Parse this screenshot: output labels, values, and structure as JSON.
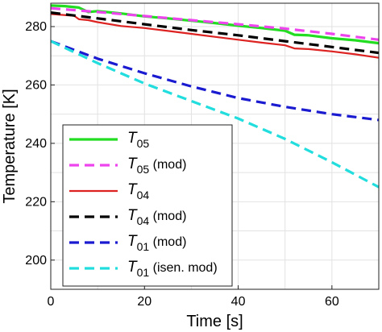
{
  "chart_data": {
    "type": "line",
    "title": "",
    "xlabel": "Time [s]",
    "ylabel": "Temperature [K]",
    "xlim": [
      0,
      70
    ],
    "ylim": [
      190,
      288
    ],
    "xticks": [
      0,
      20,
      40,
      60
    ],
    "yticks": [
      200,
      220,
      240,
      260,
      280
    ],
    "grid": true,
    "legend_position": "bottom-left",
    "series": [
      {
        "name_main": "T",
        "name_sub": "05",
        "name_suffix": "",
        "color": "#22dd22",
        "dash": "solid",
        "width": 3.2,
        "x": [
          0,
          3,
          6,
          8,
          10,
          15,
          20,
          25,
          30,
          35,
          40,
          45,
          50,
          52,
          55,
          60,
          65,
          70
        ],
        "y": [
          287.2,
          287.0,
          286.5,
          285.0,
          285.3,
          284.5,
          283.5,
          282.8,
          282.0,
          281.2,
          280.3,
          279.5,
          278.6,
          277.2,
          277.0,
          276.0,
          275.3,
          274.3
        ]
      },
      {
        "name_main": "T",
        "name_sub": "05",
        "name_suffix": " (mod)",
        "color": "#ee44ee",
        "dash": "dashed",
        "width": 3.2,
        "x": [
          0,
          10,
          20,
          30,
          40,
          50,
          60,
          70
        ],
        "y": [
          286.3,
          285.0,
          283.6,
          282.2,
          280.8,
          279.3,
          277.5,
          275.5
        ]
      },
      {
        "name_main": "T",
        "name_sub": "04",
        "name_suffix": "",
        "color": "#dd2222",
        "dash": "solid",
        "width": 2.2,
        "x": [
          0,
          5,
          6,
          8,
          10,
          15,
          20,
          25,
          30,
          35,
          40,
          45,
          50,
          52,
          55,
          60,
          65,
          70
        ],
        "y": [
          284.3,
          283.7,
          282.5,
          282.2,
          281.5,
          280.2,
          279.5,
          278.5,
          277.5,
          276.5,
          275.5,
          274.5,
          273.6,
          272.5,
          272.3,
          271.5,
          270.5,
          269.3
        ]
      },
      {
        "name_main": "T",
        "name_sub": "04",
        "name_suffix": " (mod)",
        "color": "#000000",
        "dash": "dashed",
        "width": 3.2,
        "x": [
          0,
          10,
          20,
          30,
          40,
          50,
          60,
          70
        ],
        "y": [
          284.8,
          282.8,
          280.8,
          278.8,
          277.0,
          275.0,
          273.0,
          271.0
        ]
      },
      {
        "name_main": "T",
        "name_sub": "01",
        "name_suffix": " (mod)",
        "color": "#1a1ad0",
        "dash": "dashed",
        "width": 3.2,
        "x": [
          0,
          10,
          20,
          30,
          40,
          50,
          60,
          70
        ],
        "y": [
          275.0,
          269.0,
          264.0,
          259.5,
          255.5,
          252.5,
          250.0,
          248.0
        ]
      },
      {
        "name_main": "T",
        "name_sub": "01",
        "name_suffix": " (isen. mod)",
        "color": "#22dddd",
        "dash": "dashed",
        "width": 3.2,
        "x": [
          0,
          10,
          20,
          30,
          40,
          50,
          60,
          70
        ],
        "y": [
          275.0,
          267.5,
          260.5,
          254.5,
          248.5,
          241.5,
          233.5,
          225.0
        ]
      }
    ]
  }
}
